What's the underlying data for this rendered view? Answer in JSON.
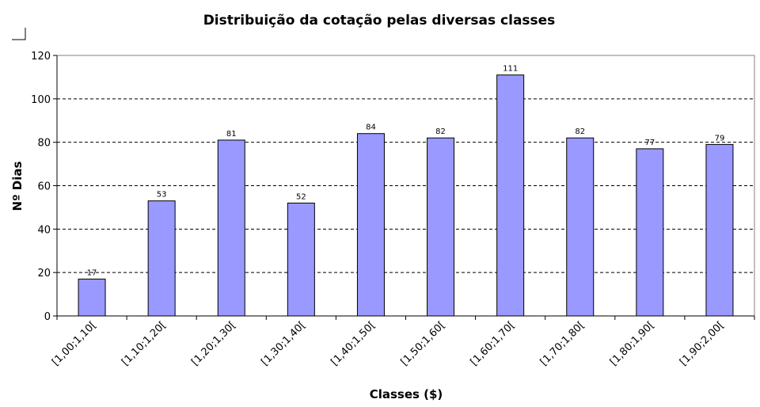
{
  "chart_data": {
    "type": "bar",
    "title": "Distribuição da cotação pelas diversas classes",
    "xlabel": "Classes ($)",
    "ylabel": "Nº Dias",
    "categories": [
      "[1,00;1,10[",
      "[1,10;1,20[",
      "[1,20;1,30[",
      "[1,30;1,40[",
      "[1,40;1,50[",
      "[1,50;1,60[",
      "[1,60;1,70[",
      "[1,70;1,80[",
      "[1,80;1,90[",
      "[1,90;2,00["
    ],
    "values": [
      17,
      53,
      81,
      52,
      84,
      82,
      111,
      82,
      77,
      79
    ],
    "ylim": [
      0,
      120
    ],
    "yticks": [
      0,
      20,
      40,
      60,
      80,
      100,
      120
    ],
    "grid": "horizontal dashed",
    "data_labels": true,
    "bar_color": "#9999ff",
    "bar_border_color": "#000000",
    "legend": "none"
  }
}
